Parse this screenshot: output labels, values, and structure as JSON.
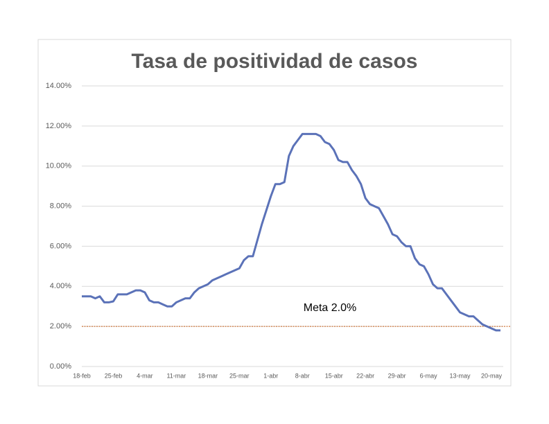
{
  "chart_data": {
    "type": "line",
    "title": "Tasa de positividad de casos",
    "categories": [
      "18-feb",
      null,
      null,
      null,
      null,
      null,
      null,
      "25-feb",
      null,
      null,
      null,
      null,
      null,
      null,
      "4-mar",
      null,
      null,
      null,
      null,
      null,
      null,
      "11-mar",
      null,
      null,
      null,
      null,
      null,
      null,
      "18-mar",
      null,
      null,
      null,
      null,
      null,
      null,
      "25-mar",
      null,
      null,
      null,
      null,
      null,
      null,
      "1-abr",
      null,
      null,
      null,
      null,
      null,
      null,
      "8-abr",
      null,
      null,
      null,
      null,
      null,
      null,
      "15-abr",
      null,
      null,
      null,
      null,
      null,
      null,
      "22-abr",
      null,
      null,
      null,
      null,
      null,
      null,
      "29-abr",
      null,
      null,
      null,
      null,
      null,
      null,
      "6-may",
      null,
      null,
      null,
      null,
      null,
      null,
      "13-may",
      null,
      null,
      null,
      null,
      null,
      null,
      "20-may",
      null,
      null
    ],
    "series": [
      {
        "name": "Tasa de positividad",
        "color": "#5b72b8",
        "values": [
          3.5,
          3.5,
          3.5,
          3.4,
          3.5,
          3.2,
          3.2,
          3.25,
          3.6,
          3.6,
          3.6,
          3.7,
          3.8,
          3.8,
          3.7,
          3.3,
          3.2,
          3.2,
          3.1,
          3.0,
          3.0,
          3.2,
          3.3,
          3.4,
          3.4,
          3.7,
          3.9,
          4.0,
          4.1,
          4.3,
          4.4,
          4.5,
          4.6,
          4.7,
          4.8,
          4.9,
          5.3,
          5.5,
          5.5,
          6.3,
          7.1,
          7.8,
          8.5,
          9.1,
          9.1,
          9.2,
          10.5,
          11.0,
          11.3,
          11.6,
          11.6,
          11.6,
          11.6,
          11.5,
          11.2,
          11.1,
          10.8,
          10.3,
          10.2,
          10.2,
          9.8,
          9.5,
          9.1,
          8.4,
          8.1,
          8.0,
          7.9,
          7.5,
          7.1,
          6.6,
          6.5,
          6.2,
          6.0,
          6.0,
          5.4,
          5.1,
          5.0,
          4.6,
          4.1,
          3.9,
          3.9,
          3.6,
          3.3,
          3.0,
          2.7,
          2.6,
          2.5,
          2.5,
          2.3,
          2.1,
          2.0,
          1.9,
          1.8,
          1.8
        ]
      }
    ],
    "ylim": [
      0,
      14
    ],
    "yticks": [
      {
        "value": 0,
        "label": "0.00%"
      },
      {
        "value": 2,
        "label": "2.00%"
      },
      {
        "value": 4,
        "label": "4.00%"
      },
      {
        "value": 6,
        "label": "6.00%"
      },
      {
        "value": 8,
        "label": "8.00%"
      },
      {
        "value": 10,
        "label": "10.00%"
      },
      {
        "value": 12,
        "label": "12.00%"
      },
      {
        "value": 14,
        "label": "14.00%"
      }
    ],
    "grid": true,
    "reference_line": {
      "value": 2,
      "color": "#c55a11",
      "label": "Meta 2.0%"
    }
  }
}
